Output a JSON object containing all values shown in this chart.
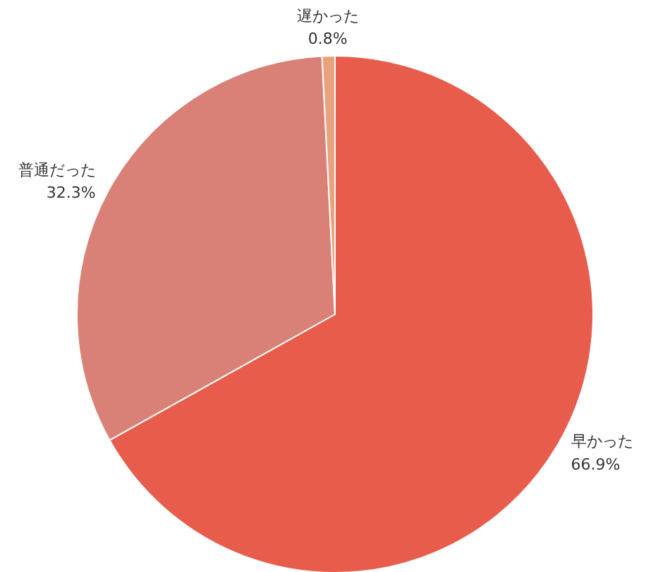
{
  "chart_data": {
    "type": "pie",
    "categories": [
      "早かった",
      "普通だった",
      "遅かった"
    ],
    "values": [
      66.9,
      32.3,
      0.8
    ],
    "colors": [
      "#e85c4c",
      "#d98176",
      "#e8a27e"
    ],
    "value_labels": [
      "66.9%",
      "32.3%",
      "0.8%"
    ]
  }
}
